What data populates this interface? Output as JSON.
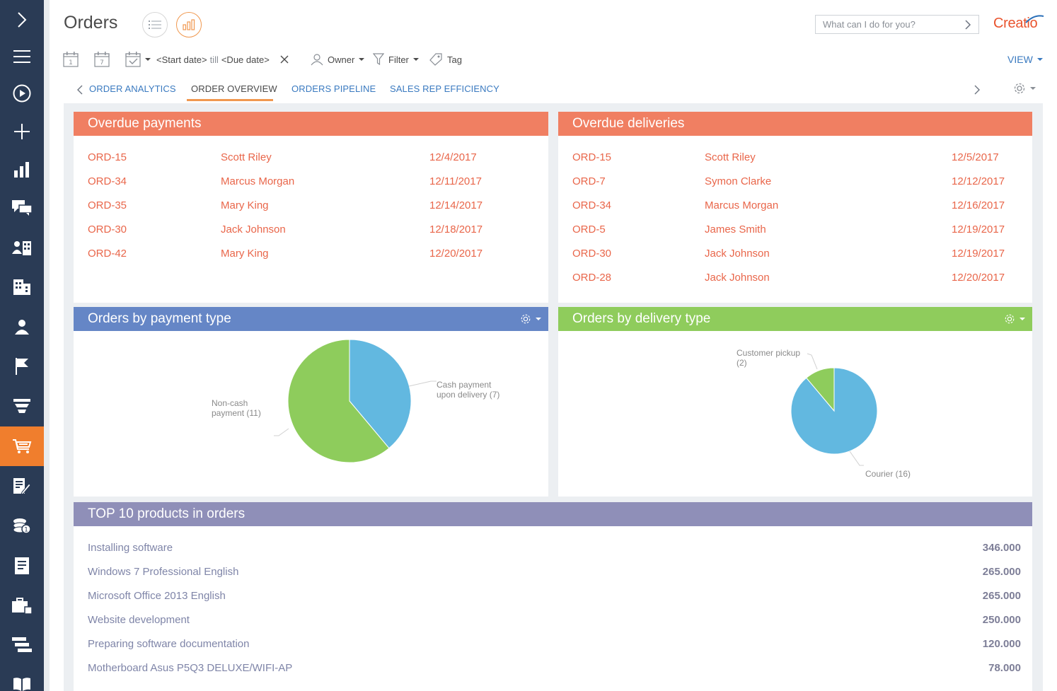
{
  "header": {
    "title": "Orders",
    "command_placeholder": "What can I do for you?",
    "logo": "Creatio",
    "view_label": "VIEW"
  },
  "filters": {
    "start_date": "<Start date>",
    "till": "till",
    "due_date": "<Due date>",
    "owner": "Owner",
    "filter": "Filter",
    "tag": "Tag",
    "calendar_day": "1",
    "calendar_week": "7"
  },
  "tabs": [
    {
      "label": "ORDER ANALYTICS"
    },
    {
      "label": "ORDER OVERVIEW"
    },
    {
      "label": "ORDERS PIPELINE"
    },
    {
      "label": "SALES REP EFFICIENCY"
    }
  ],
  "overdue_payments": {
    "title": "Overdue payments",
    "rows": [
      {
        "order": "ORD-15",
        "name": "Scott Riley",
        "date": "12/4/2017"
      },
      {
        "order": "ORD-34",
        "name": "Marcus Morgan",
        "date": "12/11/2017"
      },
      {
        "order": "ORD-35",
        "name": "Mary King",
        "date": "12/14/2017"
      },
      {
        "order": "ORD-30",
        "name": "Jack Johnson",
        "date": "12/18/2017"
      },
      {
        "order": "ORD-42",
        "name": "Mary King",
        "date": "12/20/2017"
      }
    ]
  },
  "overdue_deliveries": {
    "title": "Overdue deliveries",
    "rows": [
      {
        "order": "ORD-15",
        "name": "Scott Riley",
        "date": "12/5/2017"
      },
      {
        "order": "ORD-7",
        "name": "Symon Clarke",
        "date": "12/12/2017"
      },
      {
        "order": "ORD-34",
        "name": "Marcus Morgan",
        "date": "12/16/2017"
      },
      {
        "order": "ORD-5",
        "name": "James Smith",
        "date": "12/19/2017"
      },
      {
        "order": "ORD-30",
        "name": "Jack Johnson",
        "date": "12/19/2017"
      },
      {
        "order": "ORD-28",
        "name": "Jack Johnson",
        "date": "12/20/2017"
      }
    ]
  },
  "payment_chart": {
    "title": "Orders by payment type",
    "slices": [
      {
        "label_line1": "Cash payment",
        "label_line2": "upon delivery (7)",
        "value": 7,
        "color": "#62b8e0"
      },
      {
        "label_line1": "Non-cash",
        "label_line2": "payment (11)",
        "value": 11,
        "color": "#8ecc5c"
      }
    ]
  },
  "delivery_chart": {
    "title": "Orders by delivery type",
    "slices": [
      {
        "label_line1": "Courier (16)",
        "label_line2": "",
        "value": 16,
        "color": "#62b8e0"
      },
      {
        "label_line1": "Customer pickup",
        "label_line2": "(2)",
        "value": 2,
        "color": "#8ecc5c"
      }
    ]
  },
  "top_products": {
    "title": "TOP 10 products in orders",
    "rows": [
      {
        "name": "Installing software",
        "value": "346.000"
      },
      {
        "name": "Windows 7 Professional English",
        "value": "265.000"
      },
      {
        "name": "Microsoft Office 2013 English",
        "value": "265.000"
      },
      {
        "name": "Website development",
        "value": "250.000"
      },
      {
        "name": "Preparing software documentation",
        "value": "120.000"
      },
      {
        "name": "Motherboard Asus P5Q3 DELUXE/WIFI-AP",
        "value": "78.000"
      }
    ]
  },
  "colors": {
    "overdue_header": "#f07f62",
    "payment_header": "#6586c6",
    "delivery_header": "#8fcc5c",
    "products_header": "#8f8fb8",
    "nav_bg": "#2a3b55",
    "nav_active": "#f07e2d"
  }
}
